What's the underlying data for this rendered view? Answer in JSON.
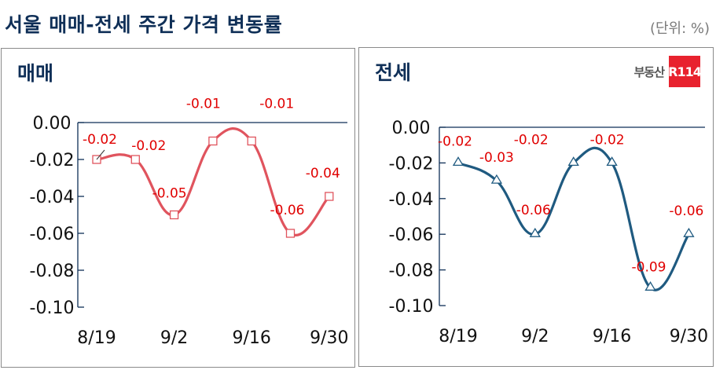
{
  "header": {
    "title": "서울 매매-전세 주간 가격 변동률",
    "unit": "(단위: %)"
  },
  "logo": {
    "text": "부동산",
    "badge": "R114",
    "badge_color": "#e8222e"
  },
  "colors": {
    "title": "#0f2f57",
    "sale_line": "#e0545e",
    "jeonse_line": "#1f5a80",
    "data_label": "#e00000",
    "axis": "#0f2f57"
  },
  "chart_data": [
    {
      "type": "line",
      "title": "매매",
      "x": [
        "8/19",
        "8/26",
        "9/2",
        "9/9",
        "9/16",
        "9/23",
        "9/30"
      ],
      "x_tick_labels": [
        "8/19",
        "9/2",
        "9/16",
        "9/30"
      ],
      "series": [
        {
          "name": "매매",
          "values": [
            -0.02,
            -0.02,
            -0.05,
            -0.01,
            -0.01,
            -0.06,
            -0.04
          ],
          "marker": "square"
        }
      ],
      "data_labels": [
        "-0.02",
        "-0.02",
        "-0.05",
        "-0.01",
        "-0.01",
        "-0.06",
        "-0.04"
      ],
      "y_tick_labels": [
        "0.00",
        "-0.02",
        "-0.04",
        "-0.06",
        "-0.08",
        "-0.10"
      ],
      "ylim": [
        -0.1,
        0.0
      ],
      "xlabel": "",
      "ylabel": "",
      "grid": false,
      "smooth": true
    },
    {
      "type": "line",
      "title": "전세",
      "x": [
        "8/19",
        "8/26",
        "9/2",
        "9/9",
        "9/16",
        "9/23",
        "9/30"
      ],
      "x_tick_labels": [
        "8/19",
        "9/2",
        "9/16",
        "9/30"
      ],
      "series": [
        {
          "name": "전세",
          "values": [
            -0.02,
            -0.03,
            -0.06,
            -0.02,
            -0.02,
            -0.09,
            -0.06
          ],
          "marker": "triangle"
        }
      ],
      "data_labels": [
        "-0.02",
        "-0.03",
        "-0.06",
        "-0.02",
        "-0.02",
        "-0.09",
        "-0.06"
      ],
      "y_tick_labels": [
        "0.00",
        "-0.02",
        "-0.04",
        "-0.06",
        "-0.08",
        "-0.10"
      ],
      "ylim": [
        -0.1,
        0.0
      ],
      "xlabel": "",
      "ylabel": "",
      "grid": false,
      "smooth": true
    }
  ]
}
